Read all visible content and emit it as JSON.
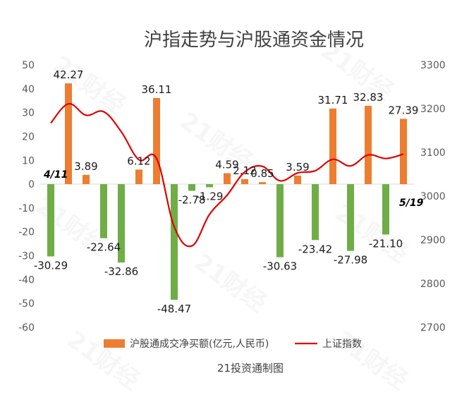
{
  "chart_data": {
    "type": "bar+line",
    "title": "沪指走势与沪股通资金情况",
    "source": "21投资通制图",
    "watermark": "21财经",
    "y_left": {
      "min": -60,
      "max": 50,
      "step": 10,
      "ticks": [
        "50",
        "40",
        "30",
        "20",
        "10",
        "0",
        "-10",
        "-20",
        "-30",
        "-40",
        "-50",
        "-60"
      ]
    },
    "y_right": {
      "min": 2700,
      "max": 3300,
      "step": 100,
      "ticks": [
        "3300",
        "3200",
        "3100",
        "3000",
        "2900",
        "2800",
        "2700"
      ]
    },
    "start_date": "4/11",
    "end_date": "5/19",
    "series": [
      {
        "name": "沪股通成交净买额(亿元,人民币)",
        "type": "bar",
        "values": [
          -30.29,
          42.27,
          3.89,
          -22.64,
          -32.86,
          6.12,
          36.11,
          -48.47,
          -2.78,
          -1.29,
          4.59,
          2.12,
          0.85,
          -30.63,
          3.59,
          -23.42,
          31.71,
          -27.98,
          32.83,
          -21.1,
          27.39
        ],
        "labels": [
          "-30.29",
          "42.27",
          "3.89",
          "-22.64",
          "-32.86",
          "6.12",
          "36.11",
          "-48.47",
          "-2.78",
          "-1.29",
          "4.59",
          "2.12",
          "0.85",
          "-30.63",
          "3.59",
          "-23.42",
          "31.71",
          "-27.98",
          "32.83",
          "-21.10",
          "27.39"
        ],
        "positive_color": "#ed7d31",
        "negative_color": "#70ad47"
      },
      {
        "name": "上证指数",
        "type": "line",
        "color": "#e00000",
        "values": [
          3167,
          3211,
          3185,
          3193,
          3147,
          3083,
          3086,
          2930,
          2886,
          2958,
          3002,
          3055,
          3068,
          3035,
          3053,
          3058,
          3084,
          3069,
          3094,
          3086,
          3096
        ]
      }
    ],
    "legend_position": "bottom",
    "grid": false
  }
}
